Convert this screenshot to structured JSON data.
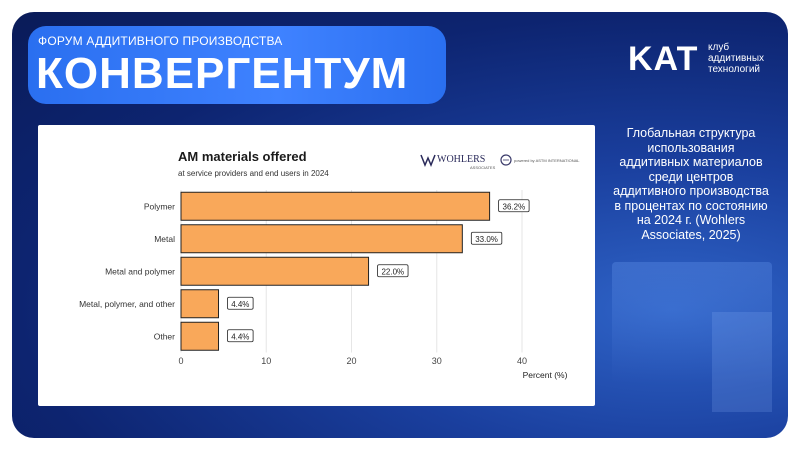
{
  "header": {
    "forum_label": "ФОРУМ АДДИТИВНОГО ПРОИЗВОДСТВА",
    "title": "КОНВЕРГЕНТУМ"
  },
  "logo": {
    "mark": "KAT",
    "line1": "клуб",
    "line2": "аддитивных",
    "line3": "технологий"
  },
  "description": "Глобальная структура использования аддитивных материалов среди центров аддитивного производства в процентах по состоянию на 2024 г. (Wohlers Associates, 2025)",
  "chart_logos": {
    "wohlers": "WOHLERS",
    "wohlers_sub": "ASSOCIATES",
    "astm_sub": "powered by ASTM INTERNATIONAL"
  },
  "colors": {
    "bar": "#F9A85A",
    "bar_stroke": "#222222",
    "background": "#1a3f9e",
    "banner": "#3f82ff"
  },
  "chart_data": {
    "type": "bar",
    "orientation": "horizontal",
    "title": "AM materials offered",
    "subtitle": "at service providers and end users in 2024",
    "xlabel": "Percent (%)",
    "ylabel": "",
    "xlim": [
      0,
      40
    ],
    "xticks": [
      0,
      10,
      20,
      30,
      40
    ],
    "grid": true,
    "categories": [
      "Polymer",
      "Metal",
      "Metal and polymer",
      "Metal, polymer, and other",
      "Other"
    ],
    "values": [
      36.2,
      33.0,
      22.0,
      4.4,
      4.4
    ],
    "data_labels": [
      "36.2%",
      "33.0%",
      "22.0%",
      "4.4%",
      "4.4%"
    ]
  }
}
